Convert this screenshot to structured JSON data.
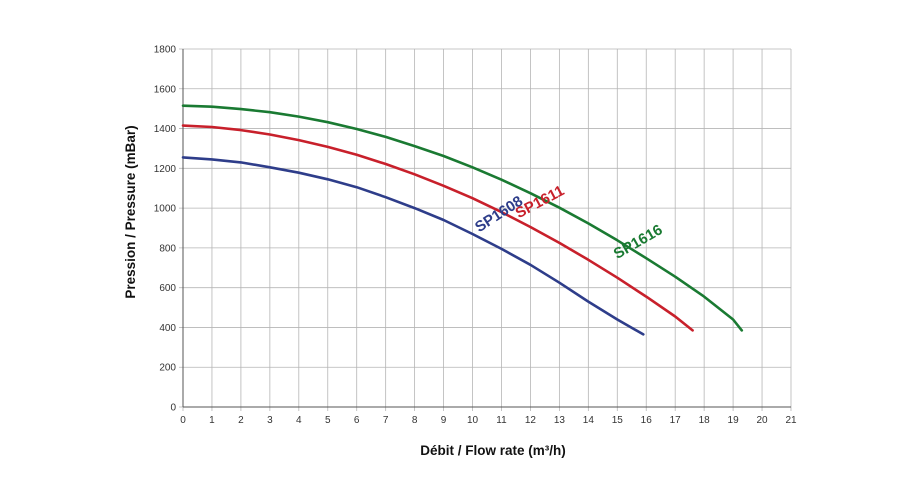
{
  "chart_data": {
    "type": "line",
    "title": "",
    "xlabel": "Débit / Flow rate (m³/h)",
    "ylabel": "Pression / Pressure (mBar)",
    "xlim": [
      0,
      21
    ],
    "ylim": [
      0,
      1800
    ],
    "x_ticks": [
      "0",
      "1",
      "2",
      "3",
      "4",
      "5",
      "6",
      "7",
      "8",
      "9",
      "10",
      "11",
      "12",
      "13",
      "14",
      "15",
      "16",
      "17",
      "18",
      "19",
      "20",
      "21"
    ],
    "y_ticks": [
      "0",
      "200",
      "400",
      "600",
      "800",
      "1000",
      "1200",
      "1400",
      "1600",
      "1800"
    ],
    "grid": true,
    "series": [
      {
        "name": "SP1608",
        "color": "#2e3d8a",
        "points": [
          [
            0,
            1255
          ],
          [
            1,
            1245
          ],
          [
            2,
            1230
          ],
          [
            3,
            1205
          ],
          [
            4,
            1178
          ],
          [
            5,
            1145
          ],
          [
            6,
            1105
          ],
          [
            7,
            1055
          ],
          [
            8,
            1000
          ],
          [
            9,
            940
          ],
          [
            10,
            870
          ],
          [
            11,
            795
          ],
          [
            12,
            715
          ],
          [
            13,
            625
          ],
          [
            14,
            530
          ],
          [
            15,
            440
          ],
          [
            15.9,
            365
          ]
        ]
      },
      {
        "name": "SP1611",
        "color": "#c8202b",
        "points": [
          [
            0,
            1415
          ],
          [
            1,
            1408
          ],
          [
            2,
            1392
          ],
          [
            3,
            1370
          ],
          [
            4,
            1342
          ],
          [
            5,
            1308
          ],
          [
            6,
            1268
          ],
          [
            7,
            1222
          ],
          [
            8,
            1170
          ],
          [
            9,
            1112
          ],
          [
            10,
            1050
          ],
          [
            11,
            980
          ],
          [
            12,
            905
          ],
          [
            13,
            825
          ],
          [
            14,
            740
          ],
          [
            15,
            650
          ],
          [
            16,
            555
          ],
          [
            17,
            455
          ],
          [
            17.6,
            385
          ]
        ]
      },
      {
        "name": "SP1616",
        "color": "#1a7a32",
        "points": [
          [
            0,
            1515
          ],
          [
            1,
            1510
          ],
          [
            2,
            1498
          ],
          [
            3,
            1482
          ],
          [
            4,
            1460
          ],
          [
            5,
            1432
          ],
          [
            6,
            1398
          ],
          [
            7,
            1358
          ],
          [
            8,
            1312
          ],
          [
            9,
            1262
          ],
          [
            10,
            1205
          ],
          [
            11,
            1143
          ],
          [
            12,
            1075
          ],
          [
            13,
            1002
          ],
          [
            14,
            923
          ],
          [
            15,
            838
          ],
          [
            16,
            748
          ],
          [
            17,
            655
          ],
          [
            18,
            555
          ],
          [
            19,
            440
          ],
          [
            19.3,
            385
          ]
        ]
      }
    ]
  },
  "series_labels": {
    "SP1608": {
      "text": "SP1608",
      "x": 11.0,
      "y": 950,
      "angle": -33
    },
    "SP1611": {
      "text": "SP1611",
      "x": 12.4,
      "y": 1010,
      "angle": -28
    },
    "SP1616": {
      "text": "SP1616",
      "x": 15.8,
      "y": 810,
      "angle": -30
    }
  }
}
